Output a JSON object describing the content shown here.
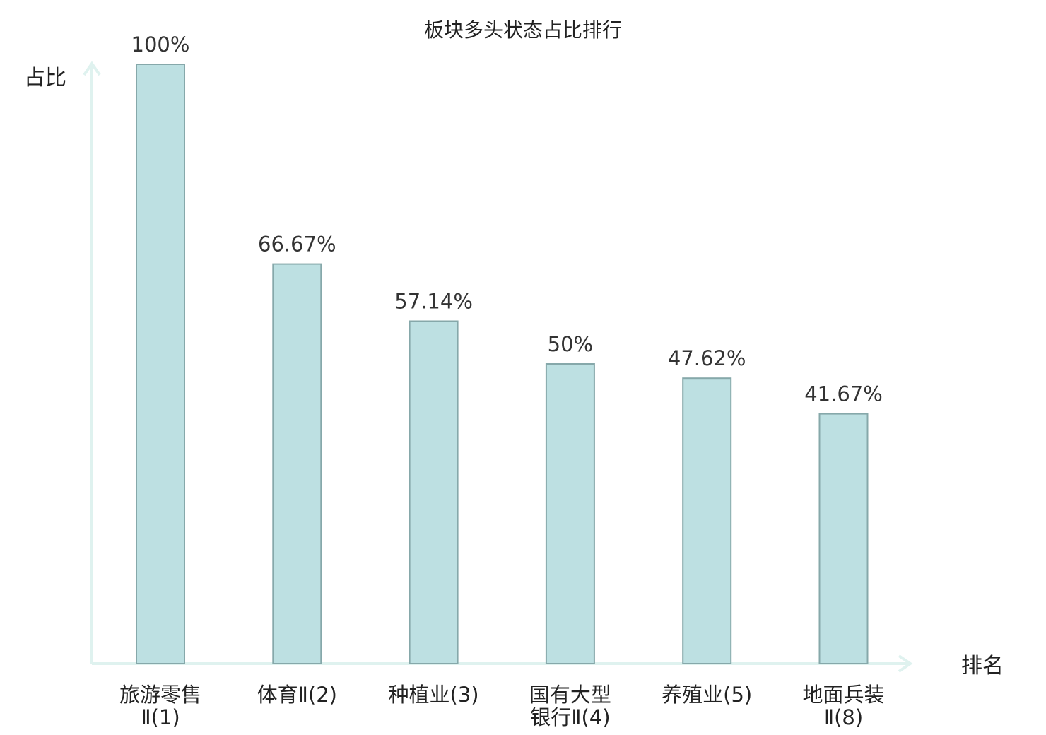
{
  "chart_data": {
    "type": "bar",
    "title": "板块多头状态占比排行",
    "xlabel": "排名",
    "ylabel": "占比",
    "ylim": [
      0,
      100
    ],
    "grid": false,
    "legend": "none",
    "categories": [
      [
        "旅游零售",
        "Ⅱ(1)"
      ],
      [
        "体育Ⅱ(2)"
      ],
      [
        "种植业(3)"
      ],
      [
        "国有大型",
        "银行Ⅱ(4)"
      ],
      [
        "养殖业(5)"
      ],
      [
        "地面兵装",
        "Ⅱ(8)"
      ]
    ],
    "values": [
      100,
      66.67,
      57.14,
      50,
      47.62,
      41.67
    ],
    "data_labels": [
      "100%",
      "66.67%",
      "57.14%",
      "50%",
      "47.62%",
      "41.67%"
    ],
    "highlight_categories": [
      5
    ],
    "colors": {
      "bar_fill": "#bde0e2",
      "bar_stroke": "#86a8aa",
      "axis": "#dff2ef",
      "text": "#222222",
      "value_text": "#333333",
      "highlight_text": "#e00000"
    }
  }
}
